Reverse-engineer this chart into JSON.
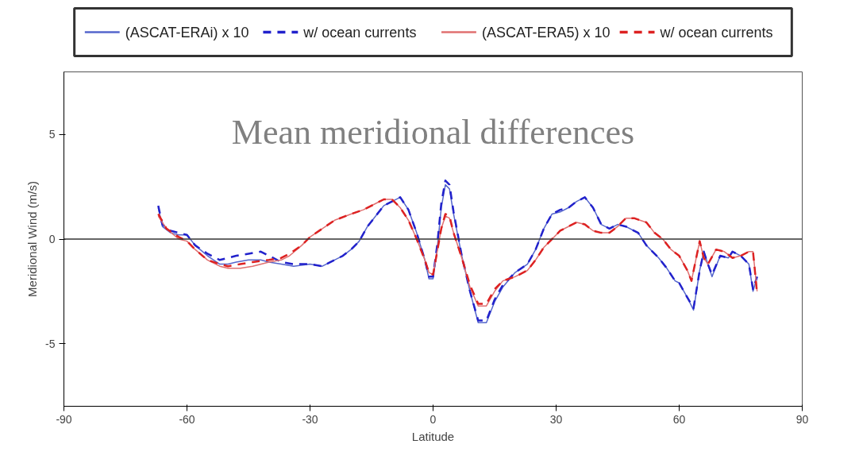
{
  "chart_data": {
    "type": "line",
    "title": "Mean meridional differences",
    "xlabel": "Latitude",
    "ylabel": "Meridional Wind (m/s)",
    "xlim": [
      -90,
      90
    ],
    "xticks": [
      -90,
      -60,
      -30,
      0,
      30,
      60,
      90
    ],
    "ylim": [
      -8,
      8
    ],
    "yticks": [
      -5,
      0,
      5
    ],
    "grid": false,
    "legend": "top",
    "ref_lines": [
      {
        "axis": "y",
        "value": 0,
        "color": "#333333"
      }
    ],
    "series": [
      {
        "name": "(ASCAT-ERAi) x 10",
        "color": "#5566cc",
        "line_style": "solid",
        "x": [
          -67,
          -66,
          -64,
          -62,
          -60,
          -58,
          -55,
          -52,
          -50,
          -48,
          -45,
          -42,
          -40,
          -37,
          -34,
          -30,
          -27,
          -25,
          -22,
          -20,
          -18,
          -16,
          -14,
          -12,
          -10,
          -8,
          -6,
          -4,
          -2,
          -1,
          0,
          1,
          2,
          3,
          4,
          5,
          7,
          9,
          11,
          13,
          15,
          17,
          20,
          23,
          25,
          27,
          29,
          31,
          33,
          35,
          37,
          39,
          41,
          43,
          45,
          47,
          50,
          52,
          55,
          57,
          59,
          60,
          62,
          63.5,
          65,
          66,
          67,
          68,
          70,
          72,
          73,
          75,
          77,
          78,
          79
        ],
        "values": [
          1.5,
          0.6,
          0.3,
          0.2,
          0.2,
          -0.3,
          -0.8,
          -1.2,
          -1.2,
          -1.1,
          -1.0,
          -1.0,
          -1.1,
          -1.2,
          -1.3,
          -1.2,
          -1.3,
          -1.1,
          -0.8,
          -0.5,
          -0.1,
          0.6,
          1.1,
          1.6,
          1.8,
          2.0,
          1.4,
          0.3,
          -1.0,
          -1.9,
          -1.9,
          -0.5,
          1.5,
          2.6,
          2.4,
          1.2,
          -0.8,
          -2.5,
          -4.0,
          -4.0,
          -3.0,
          -2.3,
          -1.6,
          -1.2,
          -0.5,
          0.5,
          1.2,
          1.3,
          1.5,
          1.8,
          2.0,
          1.5,
          0.7,
          0.5,
          0.7,
          0.6,
          0.3,
          -0.3,
          -0.9,
          -1.4,
          -2.0,
          -2.1,
          -2.8,
          -3.4,
          -1.5,
          -0.6,
          -1.2,
          -1.8,
          -0.8,
          -0.9,
          -0.6,
          -0.8,
          -1.2,
          -2.5,
          -1.8
        ]
      },
      {
        "name": "w/ ocean currents",
        "color": "#2222cc",
        "line_style": "dashed",
        "x": [
          -67,
          -66,
          -64,
          -62,
          -60,
          -58,
          -55,
          -52,
          -50,
          -48,
          -45,
          -42,
          -40,
          -37,
          -34,
          -30,
          -27,
          -25,
          -22,
          -20,
          -18,
          -16,
          -14,
          -12,
          -10,
          -8,
          -6,
          -4,
          -2,
          -1,
          0,
          1,
          2,
          3,
          4,
          5,
          7,
          9,
          11,
          13,
          15,
          17,
          20,
          23,
          25,
          27,
          29,
          31,
          33,
          35,
          37,
          39,
          41,
          43,
          45,
          47,
          50,
          52,
          55,
          57,
          59,
          60,
          62,
          63.5,
          65,
          66,
          67,
          68,
          70,
          72,
          73,
          75,
          77,
          78,
          79
        ],
        "values": [
          1.6,
          0.7,
          0.4,
          0.3,
          0.2,
          -0.3,
          -0.7,
          -1.0,
          -0.9,
          -0.8,
          -0.7,
          -0.6,
          -0.8,
          -1.1,
          -1.2,
          -1.2,
          -1.3,
          -1.1,
          -0.8,
          -0.5,
          -0.1,
          0.6,
          1.1,
          1.6,
          1.8,
          2.0,
          1.4,
          0.3,
          -1.0,
          -1.8,
          -1.8,
          -0.3,
          1.7,
          2.8,
          2.6,
          1.3,
          -0.8,
          -2.5,
          -3.9,
          -3.9,
          -2.9,
          -2.2,
          -1.6,
          -1.2,
          -0.5,
          0.5,
          1.2,
          1.4,
          1.5,
          1.8,
          2.0,
          1.5,
          0.7,
          0.5,
          0.7,
          0.6,
          0.3,
          -0.3,
          -0.9,
          -1.4,
          -2.0,
          -2.1,
          -2.8,
          -3.3,
          -1.5,
          -0.6,
          -1.2,
          -1.7,
          -0.8,
          -0.9,
          -0.6,
          -0.8,
          -1.2,
          -2.4,
          -1.8
        ]
      },
      {
        "name": "(ASCAT-ERA5) x 10",
        "color": "#e07070",
        "line_style": "solid",
        "x": [
          -67,
          -65,
          -62,
          -60,
          -58,
          -55,
          -52,
          -50,
          -47,
          -44,
          -40,
          -37,
          -35,
          -32,
          -30,
          -27,
          -24,
          -20,
          -17,
          -14,
          -12,
          -10,
          -8,
          -6,
          -4,
          -2,
          -1,
          0,
          1,
          2,
          3,
          4,
          5,
          7,
          9,
          11,
          13,
          15,
          17,
          20,
          23,
          25,
          27,
          29,
          31,
          33,
          35,
          37,
          39,
          41,
          43,
          45,
          47,
          49,
          52,
          54,
          56,
          58,
          60,
          62,
          63,
          65,
          66,
          67,
          69,
          71,
          73,
          75,
          77,
          78,
          79
        ],
        "values": [
          1.1,
          0.5,
          0.0,
          -0.1,
          -0.5,
          -1.0,
          -1.3,
          -1.4,
          -1.4,
          -1.3,
          -1.1,
          -1.0,
          -0.8,
          -0.3,
          0.1,
          0.5,
          0.9,
          1.2,
          1.4,
          1.7,
          1.9,
          1.9,
          1.5,
          0.9,
          0.0,
          -1.0,
          -1.6,
          -1.7,
          -0.6,
          0.5,
          1.1,
          1.0,
          0.3,
          -0.9,
          -2.3,
          -3.2,
          -3.2,
          -2.5,
          -2.0,
          -1.8,
          -1.5,
          -1.0,
          -0.4,
          0.0,
          0.4,
          0.6,
          0.8,
          0.7,
          0.4,
          0.3,
          0.3,
          0.6,
          1.0,
          1.0,
          0.8,
          0.3,
          0.0,
          -0.5,
          -0.8,
          -1.5,
          -2.0,
          -0.1,
          -0.9,
          -1.2,
          -0.5,
          -0.6,
          -0.9,
          -0.8,
          -0.6,
          -0.6,
          -2.5
        ]
      },
      {
        "name": "w/ ocean currents",
        "color": "#dd2222",
        "line_style": "dashed",
        "x": [
          -67,
          -65,
          -62,
          -60,
          -58,
          -55,
          -52,
          -50,
          -47,
          -44,
          -40,
          -37,
          -35,
          -32,
          -30,
          -27,
          -24,
          -20,
          -17,
          -14,
          -12,
          -10,
          -8,
          -6,
          -4,
          -2,
          -1,
          0,
          1,
          2,
          3,
          4,
          5,
          7,
          9,
          11,
          13,
          15,
          17,
          20,
          23,
          25,
          27,
          29,
          31,
          33,
          35,
          37,
          39,
          41,
          43,
          45,
          47,
          49,
          52,
          54,
          56,
          58,
          60,
          62,
          63,
          65,
          66,
          67,
          69,
          71,
          73,
          75,
          77,
          78,
          79
        ],
        "values": [
          1.2,
          0.5,
          0.1,
          -0.1,
          -0.5,
          -1.0,
          -1.2,
          -1.3,
          -1.2,
          -1.1,
          -1.0,
          -0.9,
          -0.7,
          -0.3,
          0.1,
          0.5,
          0.9,
          1.2,
          1.4,
          1.7,
          1.9,
          1.9,
          1.5,
          0.9,
          0.0,
          -1.0,
          -1.6,
          -1.7,
          -0.6,
          0.5,
          1.2,
          1.1,
          0.3,
          -0.9,
          -2.2,
          -3.1,
          -3.1,
          -2.4,
          -2.0,
          -1.8,
          -1.5,
          -1.0,
          -0.4,
          0.0,
          0.4,
          0.6,
          0.8,
          0.7,
          0.4,
          0.3,
          0.3,
          0.6,
          1.0,
          1.0,
          0.8,
          0.3,
          0.0,
          -0.5,
          -0.8,
          -1.5,
          -2.0,
          -0.1,
          -0.9,
          -1.2,
          -0.5,
          -0.6,
          -0.9,
          -0.8,
          -0.6,
          -0.6,
          -2.6
        ]
      }
    ]
  }
}
